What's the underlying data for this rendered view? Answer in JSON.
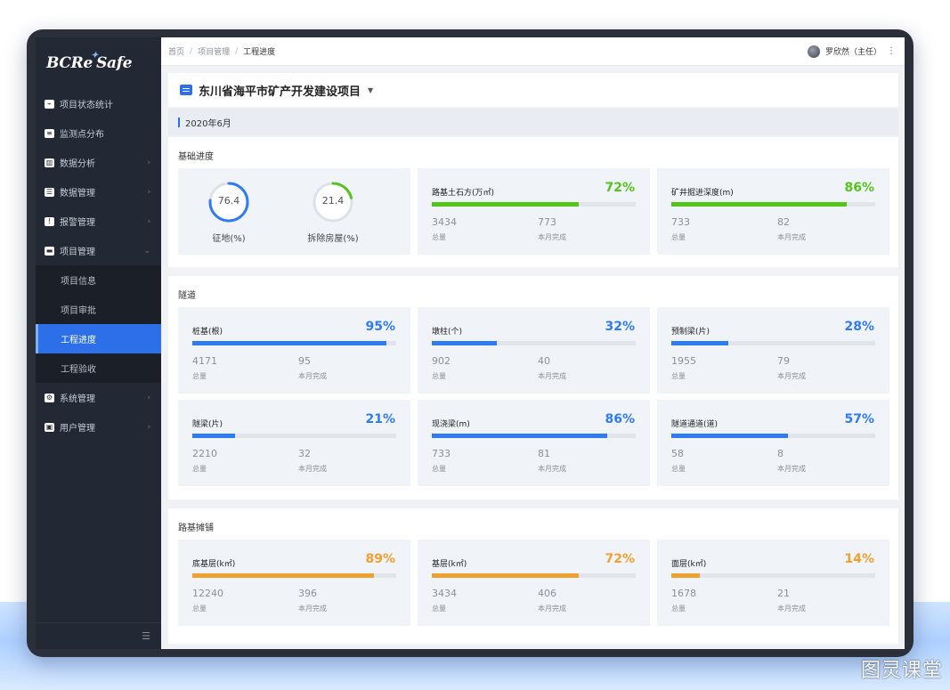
{
  "app": {
    "logo_text": "BCReSafe"
  },
  "sidebar": {
    "items": [
      {
        "label": "项目状态统计",
        "icon": "trend-icon",
        "expandable": false
      },
      {
        "label": "监测点分布",
        "icon": "list-icon",
        "expandable": false
      },
      {
        "label": "数据分析",
        "icon": "bar-chart-icon",
        "expandable": true
      },
      {
        "label": "数据管理",
        "icon": "database-icon",
        "expandable": true
      },
      {
        "label": "报警管理",
        "icon": "alarm-icon",
        "expandable": true
      },
      {
        "label": "项目管理",
        "icon": "briefcase-icon",
        "expandable": true,
        "expanded": true
      }
    ],
    "subitems": [
      {
        "label": "项目信息",
        "active": false
      },
      {
        "label": "项目审批",
        "active": false
      },
      {
        "label": "工程进度",
        "active": true
      },
      {
        "label": "工程验收",
        "active": false
      }
    ],
    "items_after": [
      {
        "label": "系统管理",
        "icon": "user-gear-icon",
        "expandable": true
      },
      {
        "label": "用户管理",
        "icon": "user-card-icon",
        "expandable": true
      }
    ]
  },
  "header": {
    "breadcrumb": [
      "首页",
      "项目管理",
      "工程进度"
    ],
    "user": "罗欣然（主任）"
  },
  "project": {
    "title": "东川省海平市矿产开发建设项目",
    "date": "2020年6月"
  },
  "colors": {
    "blue": "#2f7cf2",
    "green": "#52c41a",
    "orange": "#f0a030"
  },
  "sections": {
    "basic": {
      "title": "基础进度",
      "gauges": [
        {
          "value": "76.4",
          "fraction": 0.764,
          "label": "征地(%)",
          "color": "#2f7cf2"
        },
        {
          "value": "21.4",
          "fraction": 0.214,
          "label": "拆除房屋(%)",
          "color": "#52c41a"
        }
      ],
      "cards": [
        {
          "label": "路基土石方(万㎡)",
          "pct": "72%",
          "fraction": 0.72,
          "color": "#52c41a",
          "total": "3434",
          "month": "773",
          "total_label": "总量",
          "month_label": "本月完成"
        },
        {
          "label": "矿井掘进深度(m)",
          "pct": "86%",
          "fraction": 0.86,
          "color": "#52c41a",
          "total": "733",
          "month": "82",
          "total_label": "总量",
          "month_label": "本月完成"
        }
      ]
    },
    "tunnel": {
      "title": "隧道",
      "cards": [
        {
          "label": "桩基(根)",
          "pct": "95%",
          "fraction": 0.95,
          "color": "#2f7cf2",
          "total": "4171",
          "month": "95",
          "total_label": "总量",
          "month_label": "本月完成"
        },
        {
          "label": "墩柱(个)",
          "pct": "32%",
          "fraction": 0.32,
          "color": "#2f7cf2",
          "total": "902",
          "month": "40",
          "total_label": "总量",
          "month_label": "本月完成"
        },
        {
          "label": "预制梁(片)",
          "pct": "28%",
          "fraction": 0.28,
          "color": "#2f7cf2",
          "total": "1955",
          "month": "79",
          "total_label": "总量",
          "month_label": "本月完成"
        },
        {
          "label": "隧梁(片)",
          "pct": "21%",
          "fraction": 0.21,
          "color": "#2f7cf2",
          "total": "2210",
          "month": "32",
          "total_label": "总量",
          "month_label": "本月完成"
        },
        {
          "label": "现浇梁(m)",
          "pct": "86%",
          "fraction": 0.86,
          "color": "#2f7cf2",
          "total": "733",
          "month": "81",
          "total_label": "总量",
          "month_label": "本月完成"
        },
        {
          "label": "隧道通道(道)",
          "pct": "57%",
          "fraction": 0.57,
          "color": "#2f7cf2",
          "total": "58",
          "month": "8",
          "total_label": "总量",
          "month_label": "本月完成"
        }
      ]
    },
    "paving": {
      "title": "路基摊铺",
      "cards": [
        {
          "label": "底基层(k㎡)",
          "pct": "89%",
          "fraction": 0.89,
          "color": "#f0a030",
          "total": "12240",
          "month": "396",
          "total_label": "总量",
          "month_label": "本月完成"
        },
        {
          "label": "基层(k㎡)",
          "pct": "72%",
          "fraction": 0.72,
          "color": "#f0a030",
          "total": "3434",
          "month": "406",
          "total_label": "总量",
          "month_label": "本月完成"
        },
        {
          "label": "面层(k㎡)",
          "pct": "14%",
          "fraction": 0.14,
          "color": "#f0a030",
          "total": "1678",
          "month": "21",
          "total_label": "总量",
          "month_label": "本月完成"
        }
      ]
    }
  },
  "watermark": "图灵课堂"
}
